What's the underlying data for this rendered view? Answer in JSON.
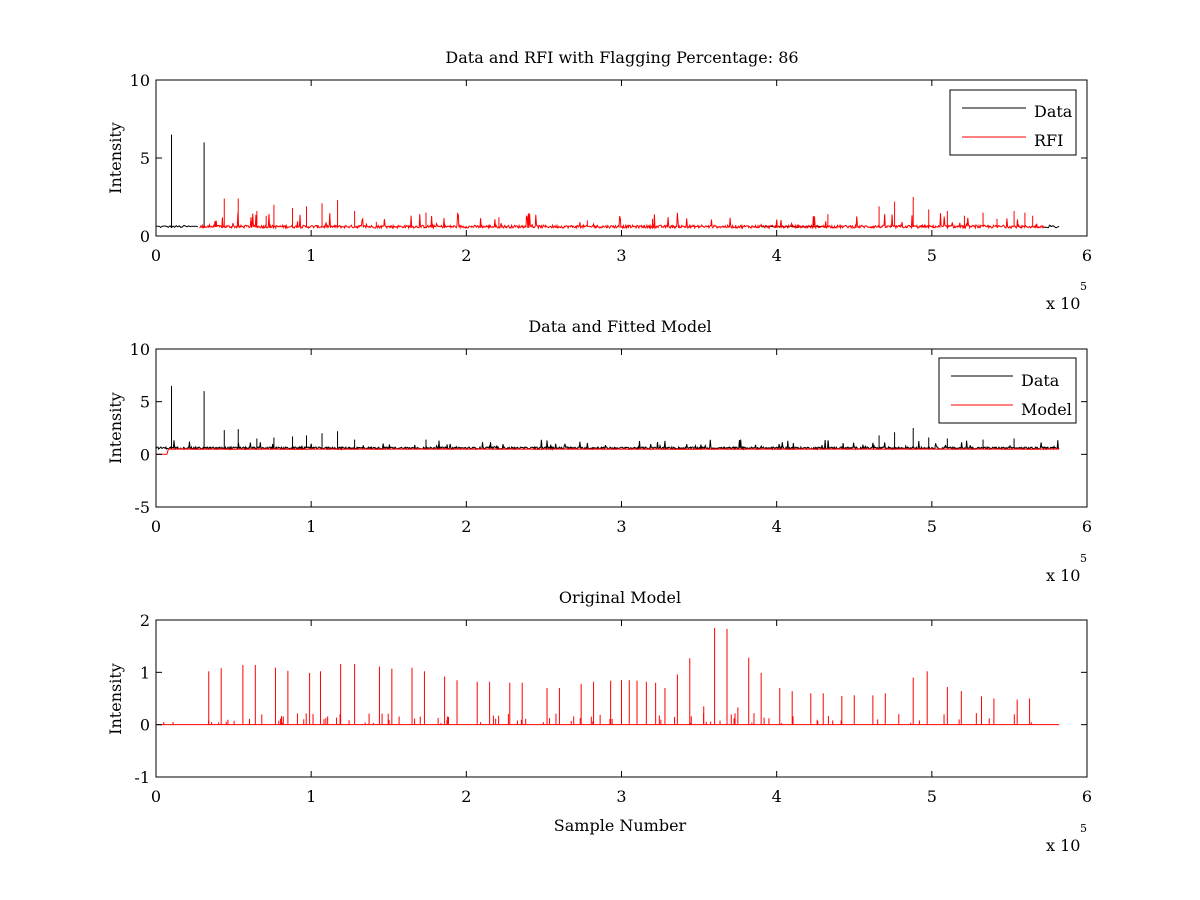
{
  "figure": {
    "background": "#ffffff"
  },
  "colors": {
    "data": "#000000",
    "rfi": "#ff0000",
    "model": "#ff0000"
  },
  "chart_data": [
    {
      "type": "line",
      "title": "Data and RFI with Flagging Percentage: 86",
      "xlabel": "",
      "ylabel": "Intensity",
      "xlim": [
        0,
        6
      ],
      "ylim": [
        0,
        10
      ],
      "xticks": [
        "0",
        "1",
        "2",
        "3",
        "4",
        "5",
        "6"
      ],
      "yticks": [
        "0",
        "5",
        "10"
      ],
      "x_multiplier": {
        "base": "x 10",
        "exponent": "5"
      },
      "legend": {
        "position": "top-right",
        "entries": [
          "Data",
          "RFI"
        ]
      },
      "series": [
        {
          "name": "Data",
          "color": "#000000",
          "baseline": 0.6,
          "x": [
            0.1,
            0.31
          ],
          "values": [
            6.5,
            6.0
          ],
          "notes": "black baseline visible at 0-0.28 and 5.75-5.82 (x10^5); tall spikes at 0.1 and 0.31"
        },
        {
          "name": "RFI",
          "color": "#ff0000",
          "baseline": 0.6,
          "x": [
            0.44,
            0.53,
            0.65,
            0.71,
            0.76,
            0.88,
            0.97,
            1.07,
            1.17,
            1.28,
            1.42,
            1.74,
            2.21,
            2.78,
            3.2,
            4.33,
            4.66,
            4.76,
            4.88,
            4.98,
            5.1,
            5.21,
            5.33,
            5.42,
            5.53,
            5.6,
            5.65
          ],
          "values": [
            2.4,
            2.4,
            1.6,
            1.3,
            2.0,
            1.8,
            1.9,
            2.1,
            2.3,
            1.6,
            0.9,
            1.5,
            1.2,
            1.0,
            1.1,
            1.4,
            1.9,
            2.2,
            2.5,
            1.7,
            1.6,
            1.3,
            1.5,
            1.1,
            1.6,
            1.5,
            1.3
          ],
          "notes": "red RFI trace approximately 0.3-5.7 (x10^5)"
        }
      ]
    },
    {
      "type": "line",
      "title": "Data and Fitted Model",
      "xlabel": "",
      "ylabel": "Intensity",
      "xlim": [
        0,
        6
      ],
      "ylim": [
        -5,
        10
      ],
      "xticks": [
        "0",
        "1",
        "2",
        "3",
        "4",
        "5",
        "6"
      ],
      "yticks": [
        "-5",
        "0",
        "5",
        "10"
      ],
      "x_multiplier": {
        "base": "x 10",
        "exponent": "5"
      },
      "legend": {
        "position": "top-right",
        "entries": [
          "Data",
          "Model"
        ]
      },
      "series": [
        {
          "name": "Data",
          "color": "#000000",
          "baseline": 0.6,
          "x": [
            0.1,
            0.31,
            0.44,
            0.53,
            0.65,
            0.76,
            0.88,
            0.97,
            1.07,
            1.17,
            1.28,
            1.74,
            4.33,
            4.66,
            4.76,
            4.88,
            4.98,
            5.1,
            5.33,
            5.53
          ],
          "values": [
            6.5,
            6.0,
            2.3,
            2.4,
            1.5,
            1.6,
            1.7,
            1.8,
            2.0,
            2.2,
            1.4,
            1.4,
            1.3,
            1.8,
            2.1,
            2.5,
            1.6,
            1.5,
            1.4,
            1.5
          ]
        },
        {
          "name": "Model",
          "color": "#ff0000",
          "baseline": 0.5,
          "x": [
            0.0,
            0.07,
            0.08
          ],
          "values": [
            0.0,
            0.0,
            0.5
          ],
          "notes": "red model line near 0 at start then ~0.5 to 5.8 (x10^5)"
        }
      ]
    },
    {
      "type": "line",
      "title": "Original Model",
      "xlabel": "Sample Number",
      "ylabel": "Intensity",
      "xlim": [
        0,
        6
      ],
      "ylim": [
        -1,
        2
      ],
      "xticks": [
        "0",
        "1",
        "2",
        "3",
        "4",
        "5",
        "6"
      ],
      "yticks": [
        "-1",
        "0",
        "1",
        "2"
      ],
      "x_multiplier": {
        "base": "x 10",
        "exponent": "5"
      },
      "series": [
        {
          "name": "Original Model",
          "color": "#ff0000",
          "baseline": 0.0,
          "x_range": [
            0.0,
            5.82
          ],
          "spikes_x": [
            0.05,
            0.11,
            0.34,
            0.42,
            0.56,
            0.64,
            0.77,
            0.85,
            0.99,
            1.06,
            1.19,
            1.28,
            1.44,
            1.52,
            1.65,
            1.73,
            1.86,
            1.94,
            2.07,
            2.15,
            2.28,
            2.36,
            2.52,
            2.6,
            2.74,
            2.82,
            2.93,
            3.0,
            3.05,
            3.1,
            3.16,
            3.22,
            3.28,
            3.36,
            3.44,
            3.53,
            3.6,
            3.68,
            3.75,
            3.82,
            3.9,
            4.02,
            4.1,
            4.22,
            4.3,
            4.42,
            4.5,
            4.62,
            4.7,
            4.88,
            4.97,
            5.1,
            5.19,
            5.32,
            5.4,
            5.55,
            5.63
          ],
          "spikes_y": [
            0.05,
            0.05,
            1.02,
            1.08,
            1.14,
            1.14,
            1.09,
            1.03,
            0.99,
            1.02,
            1.16,
            1.16,
            1.11,
            1.07,
            1.09,
            1.02,
            0.92,
            0.85,
            0.82,
            0.82,
            0.8,
            0.8,
            0.7,
            0.7,
            0.78,
            0.82,
            0.84,
            0.85,
            0.85,
            0.84,
            0.82,
            0.8,
            0.7,
            0.96,
            1.27,
            0.35,
            1.85,
            1.83,
            0.33,
            1.28,
            0.99,
            0.7,
            0.64,
            0.6,
            0.6,
            0.55,
            0.56,
            0.56,
            0.6,
            0.9,
            1.02,
            0.72,
            0.64,
            0.54,
            0.5,
            0.48,
            0.5
          ]
        }
      ]
    }
  ]
}
